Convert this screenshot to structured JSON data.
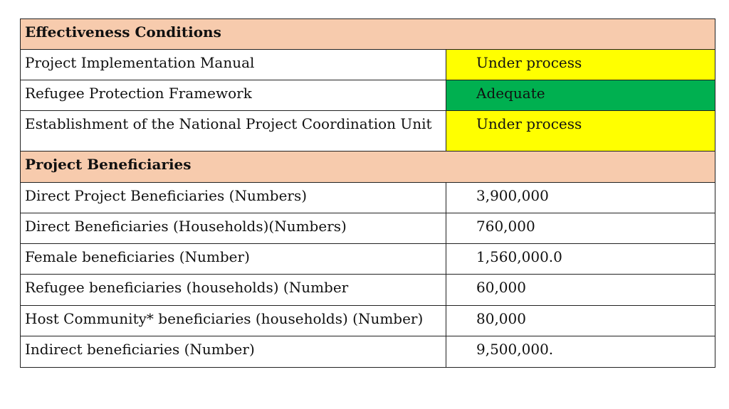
{
  "sections": [
    {
      "title": "Effectiveness Conditions",
      "rows": [
        {
          "label": "Project Implementation Manual",
          "value": "Under process",
          "status_color": "#ffff00"
        },
        {
          "label": "Refugee Protection Framework",
          "value": "Adequate",
          "status_color": "#00b050"
        },
        {
          "label": "Establishment of the National Project Coordination Unit",
          "value": "Under process",
          "status_color": "#ffff00"
        }
      ]
    },
    {
      "title": "Project Beneficiaries",
      "rows": [
        {
          "label": "Direct Project Beneficiaries (Numbers)",
          "value": "3,900,000"
        },
        {
          "label": "Direct Beneficiaries (Households)(Numbers)",
          "value": "760,000"
        },
        {
          "label": "Female beneficiaries (Number)",
          "value": "1,560,000.0"
        },
        {
          "label": "Refugee beneficiaries (households) (Number",
          "value": "60,000"
        },
        {
          "label": "Host Community* beneficiaries (households) (Number)",
          "value": "80,000"
        },
        {
          "label": "Indirect beneficiaries (Number)",
          "value": "9,500,000."
        }
      ]
    }
  ],
  "colors": {
    "section_header_bg": "#f7cbad",
    "under_process": "#ffff00",
    "adequate": "#00b050",
    "border": "#222222"
  }
}
